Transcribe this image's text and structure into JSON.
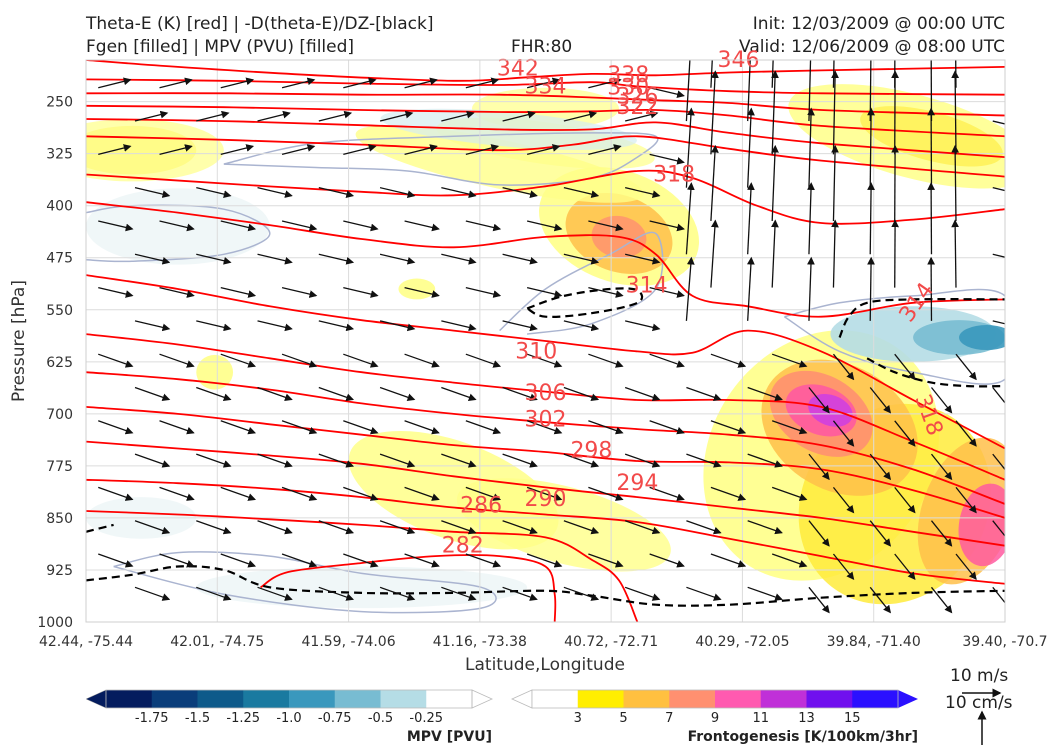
{
  "header": {
    "line1_left": "Theta-E (K) [red] | -D(theta-E)/DZ-[black]",
    "line2_left": "Fgen [filled] | MPV (PVU) [filled]",
    "fhr": "FHR:80",
    "init": "Init: 12/03/2009 @ 00:00 UTC",
    "valid": "Valid: 12/06/2009 @ 08:00 UTC"
  },
  "chart_data": {
    "type": "cross-section",
    "xlabel": "Latitude,Longitude",
    "ylabel": "Pressure [hPa]",
    "x_ticks": [
      "42.44, -75.44",
      "42.01, -74.75",
      "41.59, -74.06",
      "41.16, -73.38",
      "40.72, -72.71",
      "40.29, -72.05",
      "39.84, -71.40",
      "39.40, -70.7"
    ],
    "y_ticks": [
      250,
      325,
      400,
      475,
      550,
      625,
      700,
      775,
      850,
      925,
      1000
    ],
    "ylim": [
      190,
      1000
    ],
    "theta_e_contours": [
      {
        "label": "342",
        "points": [
          [
            0.0,
            190
          ],
          [
            0.1,
            200
          ],
          [
            0.25,
            212
          ],
          [
            0.4,
            220
          ],
          [
            0.48,
            215
          ],
          [
            0.55,
            210
          ],
          [
            0.62,
            212
          ],
          [
            0.7,
            208
          ],
          [
            0.8,
            205
          ],
          [
            1.0,
            200
          ]
        ]
      },
      {
        "label": "338",
        "points": [
          [
            0.0,
            218
          ],
          [
            0.15,
            220
          ],
          [
            0.3,
            224
          ],
          [
            0.45,
            226
          ],
          [
            0.55,
            222
          ],
          [
            0.6,
            228
          ],
          [
            0.7,
            235
          ],
          [
            0.8,
            238
          ],
          [
            1.0,
            240
          ]
        ]
      },
      {
        "label": "334",
        "points": [
          [
            0.0,
            238
          ],
          [
            0.15,
            238
          ],
          [
            0.3,
            240
          ],
          [
            0.45,
            240
          ],
          [
            0.55,
            244
          ],
          [
            0.62,
            248
          ],
          [
            0.7,
            252
          ],
          [
            0.8,
            262
          ],
          [
            1.0,
            270
          ]
        ]
      },
      {
        "label": "330",
        "points": [
          [
            0.0,
            256
          ],
          [
            0.15,
            258
          ],
          [
            0.3,
            262
          ],
          [
            0.45,
            265
          ],
          [
            0.55,
            264
          ],
          [
            0.62,
            262
          ],
          [
            0.7,
            270
          ],
          [
            0.8,
            285
          ],
          [
            1.0,
            300
          ]
        ]
      },
      {
        "label": "326",
        "points": [
          [
            0.0,
            275
          ],
          [
            0.15,
            278
          ],
          [
            0.3,
            284
          ],
          [
            0.45,
            290
          ],
          [
            0.55,
            290
          ],
          [
            0.62,
            280
          ],
          [
            0.7,
            295
          ],
          [
            0.8,
            310
          ],
          [
            1.0,
            330
          ]
        ]
      },
      {
        "label": "322",
        "points": [
          [
            0.0,
            300
          ],
          [
            0.15,
            305
          ],
          [
            0.3,
            312
          ],
          [
            0.45,
            320
          ],
          [
            0.53,
            312
          ],
          [
            0.6,
            300
          ],
          [
            0.7,
            318
          ],
          [
            0.8,
            335
          ],
          [
            1.0,
            358
          ]
        ]
      },
      {
        "label": "318",
        "points": [
          [
            0.0,
            355
          ],
          [
            0.15,
            368
          ],
          [
            0.3,
            380
          ],
          [
            0.4,
            385
          ],
          [
            0.5,
            372
          ],
          [
            0.6,
            350
          ],
          [
            0.66,
            360
          ],
          [
            0.73,
            400
          ],
          [
            0.8,
            425
          ],
          [
            0.9,
            420
          ],
          [
            1.0,
            405
          ]
        ]
      },
      {
        "label": "314",
        "points": [
          [
            0.0,
            395
          ],
          [
            0.1,
            410
          ],
          [
            0.2,
            428
          ],
          [
            0.3,
            448
          ],
          [
            0.4,
            460
          ],
          [
            0.5,
            445
          ],
          [
            0.58,
            445
          ],
          [
            0.62,
            470
          ],
          [
            0.66,
            530
          ],
          [
            0.72,
            545
          ],
          [
            0.8,
            560
          ],
          [
            0.9,
            540
          ],
          [
            1.0,
            535
          ]
        ]
      },
      {
        "label": "310",
        "points": [
          [
            0.0,
            500
          ],
          [
            0.1,
            520
          ],
          [
            0.2,
            545
          ],
          [
            0.3,
            565
          ],
          [
            0.4,
            580
          ],
          [
            0.5,
            595
          ],
          [
            0.6,
            610
          ],
          [
            0.66,
            612
          ],
          [
            0.72,
            580
          ],
          [
            0.8,
            610
          ],
          [
            0.9,
            680
          ],
          [
            1.0,
            750
          ]
        ]
      },
      {
        "label": "306",
        "points": [
          [
            0.0,
            585
          ],
          [
            0.1,
            600
          ],
          [
            0.2,
            620
          ],
          [
            0.3,
            640
          ],
          [
            0.4,
            655
          ],
          [
            0.5,
            668
          ],
          [
            0.6,
            680
          ],
          [
            0.7,
            680
          ],
          [
            0.8,
            690
          ],
          [
            0.9,
            740
          ],
          [
            1.0,
            795
          ]
        ]
      },
      {
        "label": "302",
        "points": [
          [
            0.0,
            640
          ],
          [
            0.1,
            650
          ],
          [
            0.2,
            665
          ],
          [
            0.3,
            685
          ],
          [
            0.4,
            700
          ],
          [
            0.5,
            712
          ],
          [
            0.6,
            722
          ],
          [
            0.7,
            730
          ],
          [
            0.8,
            745
          ],
          [
            0.9,
            780
          ],
          [
            1.0,
            830
          ]
        ]
      },
      {
        "label": "298",
        "points": [
          [
            0.0,
            690
          ],
          [
            0.1,
            700
          ],
          [
            0.2,
            715
          ],
          [
            0.3,
            730
          ],
          [
            0.4,
            745
          ],
          [
            0.5,
            755
          ],
          [
            0.6,
            768
          ],
          [
            0.7,
            770
          ],
          [
            0.8,
            780
          ],
          [
            0.9,
            810
          ],
          [
            1.0,
            850
          ]
        ]
      },
      {
        "label": "294",
        "points": [
          [
            0.0,
            740
          ],
          [
            0.1,
            750
          ],
          [
            0.2,
            760
          ],
          [
            0.3,
            772
          ],
          [
            0.4,
            790
          ],
          [
            0.5,
            806
          ],
          [
            0.6,
            820
          ],
          [
            0.7,
            835
          ],
          [
            0.8,
            850
          ],
          [
            0.9,
            870
          ],
          [
            1.0,
            890
          ]
        ]
      },
      {
        "label": "290",
        "points": [
          [
            0.0,
            795
          ],
          [
            0.1,
            800
          ],
          [
            0.2,
            808
          ],
          [
            0.3,
            820
          ],
          [
            0.4,
            835
          ],
          [
            0.5,
            845
          ],
          [
            0.6,
            856
          ],
          [
            0.7,
            880
          ],
          [
            0.8,
            905
          ],
          [
            0.9,
            930
          ],
          [
            1.0,
            945
          ]
        ]
      },
      {
        "label": "286",
        "points": [
          [
            0.0,
            840
          ],
          [
            0.1,
            845
          ],
          [
            0.2,
            852
          ],
          [
            0.3,
            860
          ],
          [
            0.4,
            870
          ],
          [
            0.5,
            878
          ],
          [
            0.55,
            910
          ],
          [
            0.58,
            940
          ],
          [
            0.6,
            1000
          ]
        ]
      },
      {
        "label": "282",
        "points": [
          [
            0.19,
            950
          ],
          [
            0.22,
            928
          ],
          [
            0.3,
            915
          ],
          [
            0.38,
            905
          ],
          [
            0.45,
            905
          ],
          [
            0.5,
            920
          ],
          [
            0.51,
            960
          ],
          [
            0.51,
            1000
          ]
        ]
      }
    ],
    "neg_stability_contours": [
      [
        [
          0.0,
          940
        ],
        [
          0.05,
          932
        ],
        [
          0.1,
          920
        ],
        [
          0.15,
          925
        ],
        [
          0.2,
          950
        ],
        [
          0.3,
          958
        ],
        [
          0.4,
          958
        ],
        [
          0.5,
          955
        ],
        [
          0.55,
          962
        ],
        [
          0.62,
          975
        ],
        [
          0.7,
          975
        ],
        [
          0.8,
          965
        ],
        [
          0.9,
          958
        ],
        [
          1.0,
          955
        ]
      ],
      [
        [
          0.48,
          548
        ],
        [
          0.52,
          530
        ],
        [
          0.57,
          520
        ],
        [
          0.6,
          522
        ],
        [
          0.6,
          540
        ],
        [
          0.55,
          555
        ],
        [
          0.5,
          560
        ],
        [
          0.48,
          548
        ]
      ],
      [
        [
          0.82,
          590
        ],
        [
          0.83,
          560
        ],
        [
          0.85,
          540
        ],
        [
          0.9,
          535
        ],
        [
          1.0,
          535
        ]
      ],
      [
        [
          0.85,
          620
        ],
        [
          0.88,
          640
        ],
        [
          0.92,
          655
        ],
        [
          0.96,
          660
        ],
        [
          1.0,
          660
        ]
      ],
      [
        [
          0.0,
          870
        ],
        [
          0.03,
          860
        ]
      ]
    ],
    "fgen_levels": [
      3,
      5,
      7,
      9,
      11,
      13,
      15
    ],
    "fgen_colors": [
      "#ffff88",
      "#ffeb3b",
      "#ffc04a",
      "#ff9070",
      "#ff5aa0",
      "#d040e0",
      "#2b2cff"
    ],
    "mpv_levels": [
      -1.75,
      -1.5,
      -1.25,
      -1.0,
      -0.75,
      -0.5,
      -0.25
    ],
    "mpv_colors": [
      "#041c5e",
      "#0a3d7a",
      "#0e5a8a",
      "#1a7aa0",
      "#3a98bd",
      "#78bcd2",
      "#b5dde6",
      "#ffffff"
    ],
    "fgen_colorbar_title": "Frontogenesis [K/100km/3hr]",
    "mpv_colorbar_title": "MPV [PVU]",
    "wind_key": {
      "horizontal": "10 m/s",
      "vertical": "10 cm/s"
    },
    "colors": {
      "theta_e": "#ff0000",
      "stability": "#000000",
      "mpv_outline": "#aab4d0"
    }
  }
}
